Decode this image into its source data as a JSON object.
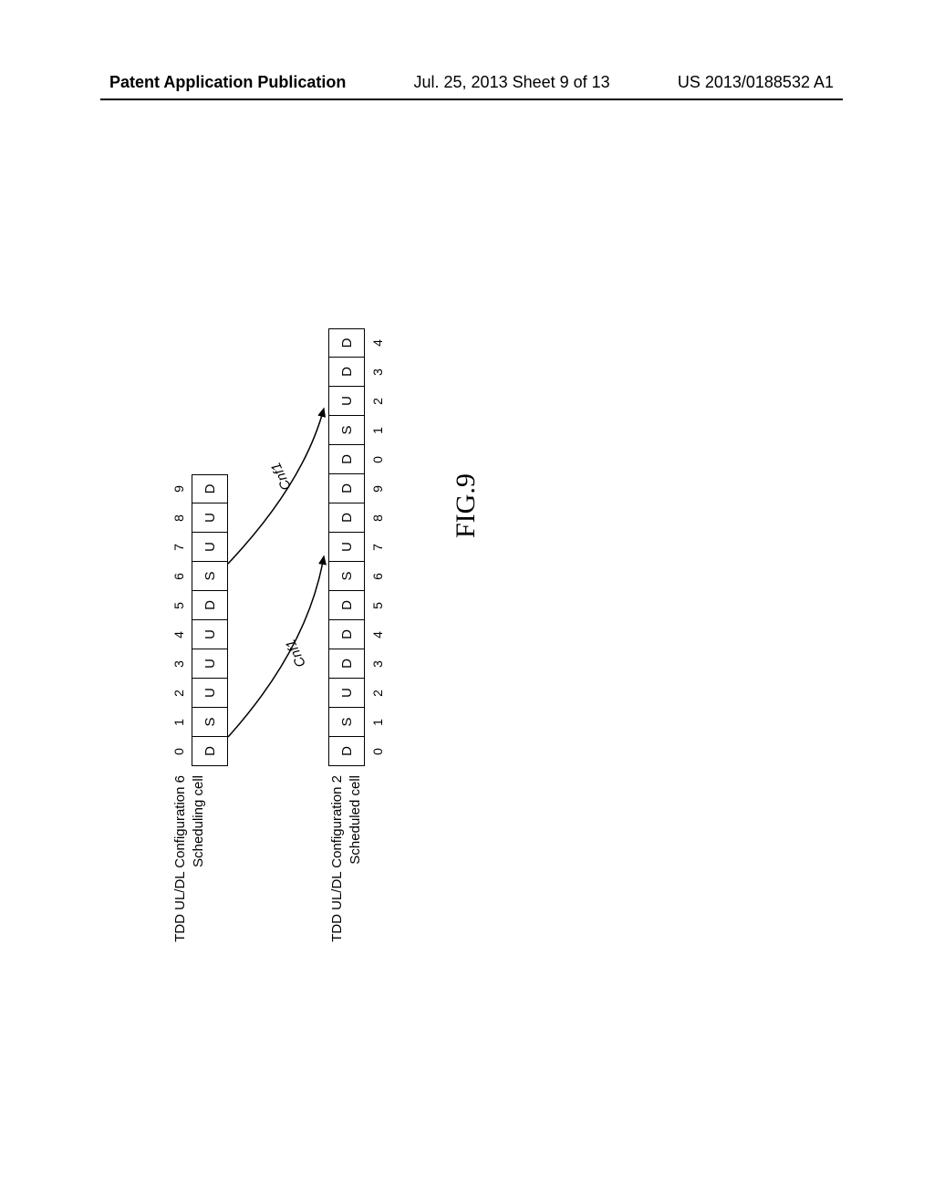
{
  "header": {
    "left": "Patent Application Publication",
    "center": "Jul. 25, 2013  Sheet 9 of 13",
    "right": "US 2013/0188532 A1"
  },
  "figureLabel": "FIG.9",
  "scheduling": {
    "title": "TDD UL/DL Configuration 6",
    "subtitle": "Scheduling cell",
    "slots": [
      "D",
      "S",
      "U",
      "U",
      "U",
      "D",
      "S",
      "U",
      "U",
      "D"
    ],
    "indices": [
      "0",
      "1",
      "2",
      "3",
      "4",
      "5",
      "6",
      "7",
      "8",
      "9"
    ]
  },
  "scheduled": {
    "title": "TDD UL/DL Configuration 2",
    "subtitle": "Scheduled cell",
    "slots": [
      "D",
      "S",
      "U",
      "D",
      "D",
      "D",
      "S",
      "U",
      "D",
      "D",
      "D",
      "S",
      "U",
      "D",
      "D"
    ],
    "indices": [
      "0",
      "1",
      "2",
      "3",
      "4",
      "5",
      "6",
      "7",
      "8",
      "9",
      "0",
      "1",
      "2",
      "3",
      "4"
    ]
  },
  "arcs": {
    "label1": "Cnf1",
    "label2": "Cnf1"
  },
  "style": {
    "slotWidth": 32,
    "slotHeight": 40,
    "borderColor": "#000000",
    "backgroundColor": "#ffffff",
    "fontSize": 15,
    "indexFontSize": 14,
    "labelFontSize": 15,
    "figureFontSize": 30
  }
}
